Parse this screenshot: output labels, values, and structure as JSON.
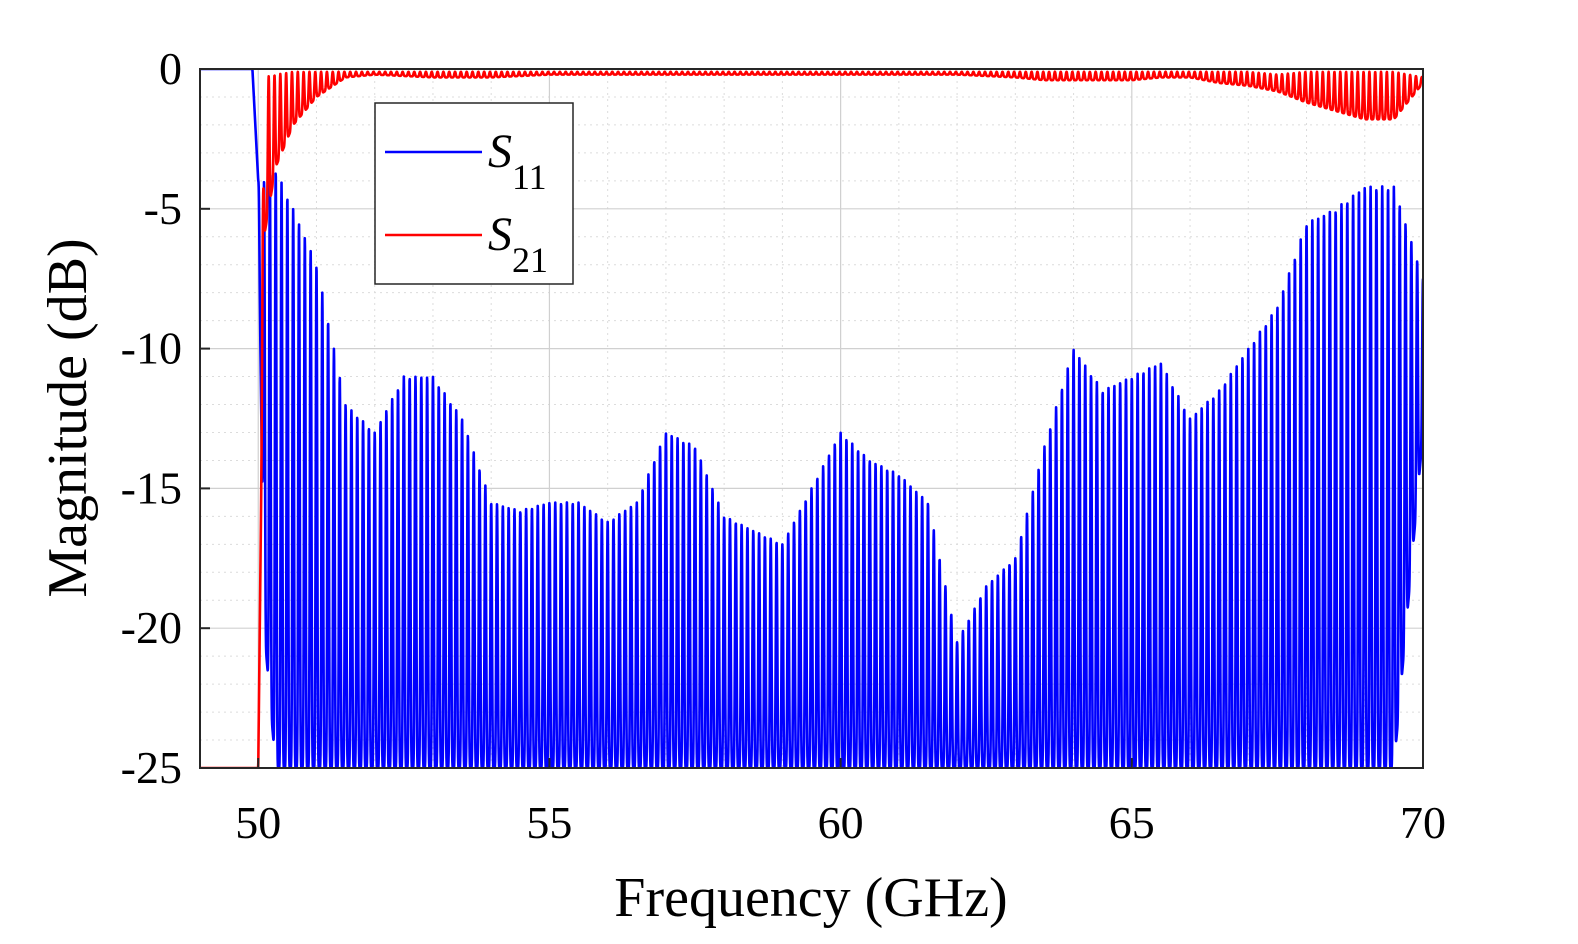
{
  "chart_data": {
    "type": "line",
    "xlabel": "Frequency (GHz)",
    "ylabel": "Magnitude (dB)",
    "xlim": [
      49,
      70
    ],
    "ylim": [
      -25,
      0
    ],
    "xticks": [
      50,
      55,
      60,
      65,
      70
    ],
    "xtick_labels": [
      "50",
      "55",
      "60",
      "65",
      "70"
    ],
    "yticks": [
      0,
      -5,
      -10,
      -15,
      -20,
      -25
    ],
    "ytick_labels": [
      "0",
      "-5",
      "-10",
      "-15",
      "-20",
      "-25"
    ],
    "grid": true,
    "minor_grid": true,
    "legend_position": "top-left",
    "series": [
      {
        "name": "S11",
        "name_main": "S",
        "name_sub": "11",
        "color": "#0000ff",
        "style": "dense-oscillation",
        "cycle_ghz": 0.1,
        "x": [
          49.0,
          49.9,
          49.95,
          50.0,
          50.1,
          50.3,
          50.6,
          51.0,
          51.5,
          52.0,
          52.5,
          53.0,
          53.5,
          54.0,
          54.5,
          55.0,
          55.5,
          56.0,
          56.5,
          57.0,
          57.5,
          58.0,
          58.5,
          59.0,
          59.5,
          60.0,
          60.5,
          61.0,
          61.5,
          62.0,
          62.5,
          63.0,
          63.5,
          64.0,
          64.5,
          65.0,
          65.5,
          66.0,
          66.5,
          67.0,
          67.5,
          68.0,
          68.5,
          69.0,
          69.5,
          70.0
        ],
        "peak_envelope": [
          0.0,
          0.0,
          -2.0,
          -4.0,
          -4.0,
          -3.6,
          -5.0,
          -7.0,
          -12.0,
          -13.0,
          -11.0,
          -11.0,
          -12.5,
          -15.5,
          -15.8,
          -15.5,
          -15.5,
          -16.2,
          -15.5,
          -13.0,
          -13.5,
          -16.0,
          -16.5,
          -17.0,
          -15.0,
          -13.0,
          -14.0,
          -14.5,
          -15.5,
          -20.5,
          -18.5,
          -17.5,
          -13.5,
          -10.0,
          -11.5,
          -11.0,
          -10.5,
          -12.5,
          -11.5,
          -10.0,
          -8.5,
          -5.5,
          -5.0,
          -4.2,
          -4.2,
          -7.5
        ],
        "trough_envelope": [
          0.0,
          0.0,
          -2.0,
          -4.0,
          -20.0,
          -25.0,
          -25.0,
          -25.0,
          -25.0,
          -25.0,
          -25.0,
          -25.0,
          -25.0,
          -25.0,
          -25.0,
          -25.0,
          -25.0,
          -25.0,
          -25.0,
          -25.0,
          -25.0,
          -25.0,
          -25.0,
          -25.0,
          -25.0,
          -25.0,
          -25.0,
          -25.0,
          -25.0,
          -25.0,
          -25.0,
          -25.0,
          -25.0,
          -25.0,
          -25.0,
          -25.0,
          -25.0,
          -25.0,
          -25.0,
          -25.0,
          -25.0,
          -25.0,
          -25.0,
          -25.0,
          -25.0,
          -13.0
        ]
      },
      {
        "name": "S21",
        "name_main": "S",
        "name_sub": "21",
        "color": "#ff0000",
        "style": "dense-oscillation",
        "cycle_ghz": 0.1,
        "x": [
          49.0,
          49.9,
          49.95,
          50.0,
          50.1,
          50.3,
          50.6,
          51.0,
          51.5,
          52.0,
          53.0,
          54.0,
          55.0,
          56.0,
          57.0,
          58.0,
          59.0,
          60.0,
          61.0,
          62.0,
          63.0,
          63.5,
          64.0,
          64.5,
          65.0,
          65.5,
          66.0,
          66.5,
          67.0,
          67.5,
          68.0,
          68.5,
          69.0,
          69.5,
          70.0
        ],
        "peak_envelope": [
          -25.0,
          -25.0,
          -25.0,
          -25.0,
          -0.3,
          -0.2,
          -0.1,
          -0.1,
          -0.1,
          -0.1,
          -0.1,
          -0.1,
          -0.1,
          -0.1,
          -0.1,
          -0.1,
          -0.1,
          -0.1,
          -0.1,
          -0.1,
          -0.1,
          -0.1,
          -0.1,
          -0.1,
          -0.1,
          -0.1,
          -0.1,
          -0.1,
          -0.1,
          -0.2,
          -0.1,
          -0.1,
          -0.1,
          -0.1,
          -0.3
        ],
        "trough_envelope": [
          -25.0,
          -25.0,
          -25.0,
          -25.0,
          -6.0,
          -3.5,
          -2.0,
          -1.0,
          -0.3,
          -0.2,
          -0.3,
          -0.3,
          -0.2,
          -0.2,
          -0.2,
          -0.2,
          -0.2,
          -0.2,
          -0.2,
          -0.2,
          -0.3,
          -0.4,
          -0.4,
          -0.4,
          -0.4,
          -0.3,
          -0.3,
          -0.5,
          -0.6,
          -0.8,
          -1.2,
          -1.5,
          -1.8,
          -1.8,
          -0.5
        ]
      }
    ]
  }
}
